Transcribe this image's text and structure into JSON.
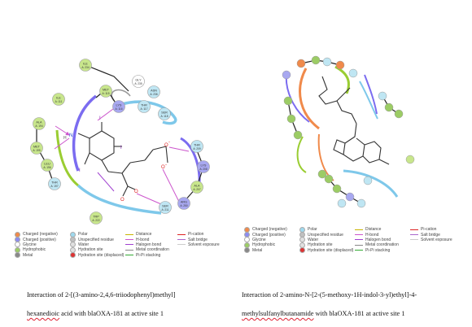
{
  "left": {
    "residues": [
      {
        "name": "ILE",
        "num": "A: 234",
        "color": "#c8e68c"
      },
      {
        "name": "GLY",
        "num": "A: 235",
        "color": "#ffffff"
      },
      {
        "name": "ASN",
        "num": "A: 236",
        "color": "#bfe6f3"
      },
      {
        "name": "MET",
        "num": "A: 115",
        "color": "#c8e68c"
      },
      {
        "name": "ILE",
        "num": "A: 111",
        "color": "#c8e68c"
      },
      {
        "name": "LYS",
        "num": "A: 116",
        "color": "#a8a8f0"
      },
      {
        "name": "THR",
        "num": "A: 117",
        "color": "#bfe6f3"
      },
      {
        "name": "SER",
        "num": "A: 118",
        "color": "#bfe6f3"
      },
      {
        "name": "ALA",
        "num": "A: 194",
        "color": "#c8e68c"
      },
      {
        "name": "MET",
        "num": "A: 195",
        "color": "#c8e68c"
      },
      {
        "name": "LEU",
        "num": "A: 196",
        "color": "#c8e68c"
      },
      {
        "name": "THR",
        "num": "A: 197",
        "color": "#bfe6f3"
      },
      {
        "name": "THR",
        "num": "A: 209",
        "color": "#bfe6f3"
      },
      {
        "name": "LYS",
        "num": "A: 208",
        "color": "#a8a8f0"
      },
      {
        "name": "ALA",
        "num": "A: 207",
        "color": "#c8e68c"
      },
      {
        "name": "ARG",
        "num": "A: 250",
        "color": "#a8a8f0"
      },
      {
        "name": "SER",
        "num": "A: 211",
        "color": "#bfe6f3"
      },
      {
        "name": "TRP",
        "num": "A: 222",
        "color": "#c8e68c"
      }
    ],
    "atoms": {
      "n": "N",
      "h": "H",
      "i1": "I",
      "i2": "I",
      "i3": "I",
      "o1": "O",
      "o2": "O",
      "o3": "O",
      "o4": "O",
      "minus1": "-",
      "minus2": "-"
    }
  },
  "legend": {
    "col1": [
      {
        "label": "Charged (negative)",
        "color": "#f08a4b"
      },
      {
        "label": "Charged (positive)",
        "color": "#8c8cf0"
      },
      {
        "label": "Glycine",
        "color": "#ffffff"
      },
      {
        "label": "Hydrophobic",
        "color": "#9ccc65"
      },
      {
        "label": "Metal",
        "color": "#888888"
      }
    ],
    "col2": [
      {
        "label": "Polar",
        "color": "#9fd9ee"
      },
      {
        "label": "Unspecified residue",
        "color": "#c0c0c0"
      },
      {
        "label": "Water",
        "color": "#e0e0e0"
      },
      {
        "label": "Hydration site",
        "color": "#e0e0e0"
      },
      {
        "label": "Hydration site (displaced)",
        "color": "#d33"
      }
    ],
    "col3": [
      {
        "label": "Distance",
        "color": "#c9b400"
      },
      {
        "label": "H-bond",
        "color": "#cc55cc"
      },
      {
        "label": "Halogen bond",
        "color": "#a040d0"
      },
      {
        "label": "Metal coordination",
        "color": "#888888"
      },
      {
        "label": "Pi-Pi stacking",
        "color": "#33aa33"
      }
    ],
    "col4": [
      {
        "label": "Pi-cation",
        "color": "#d22"
      },
      {
        "label": "Salt bridge",
        "color": "#aa66cc"
      },
      {
        "label": "Solvent exposure",
        "color": "#cccccc"
      }
    ]
  },
  "captions": {
    "left_line1": "Interaction of 2-[(3-amino-2,4,6-triiodophenyl)methyl]",
    "left_line2a": "hexanedioic",
    "left_line2b": " acid  with blaOXA-181 at active site 1",
    "right_line1": "Interaction of 2-amino-N-[2-(5-methoxy-1H-indol-3-yl)ethyl]-4-",
    "right_line2a": "methylsulfanylbutanamide",
    "right_line2b": " with blaOXA-181 at active site 1"
  }
}
